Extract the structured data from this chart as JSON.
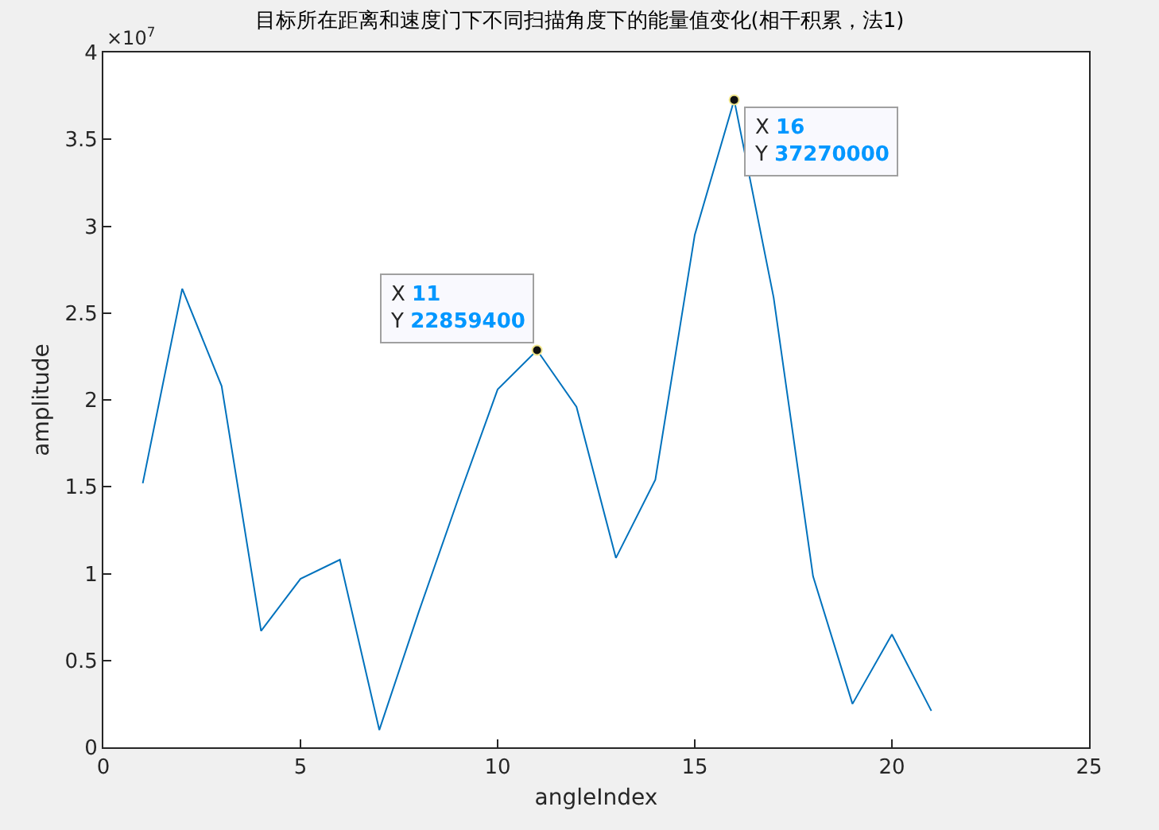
{
  "chart_data": {
    "type": "line",
    "title": "目标所在距离和速度门下不同扫描角度下的能量值变化(相干积累，法1)",
    "xlabel": "angleIndex",
    "ylabel": "amplitude",
    "x": [
      1,
      2,
      3,
      4,
      5,
      6,
      7,
      8,
      9,
      10,
      11,
      12,
      13,
      14,
      15,
      16,
      17,
      18,
      19,
      20,
      21
    ],
    "series": [
      {
        "color": "#0072bd",
        "values": [
          1.52,
          2.64,
          2.08,
          0.67,
          0.97,
          1.08,
          0.1,
          0.78,
          1.43,
          2.06,
          2.28594,
          1.96,
          1.09,
          1.54,
          2.95,
          3.727,
          2.59,
          0.985,
          0.25,
          0.65,
          0.21
        ]
      }
    ],
    "xlim": [
      0,
      25
    ],
    "xticks": [
      0,
      5,
      10,
      15,
      20,
      25
    ],
    "ylim": [
      0,
      4
    ],
    "yticks": [
      0,
      0.5,
      1,
      1.5,
      2,
      2.5,
      3,
      3.5,
      4
    ],
    "annotations": [
      "×10$^{7}$",
      {
        "text": "X 11\nY 22859400",
        "x": 11,
        "y": 2.28594
      },
      {
        "text": "X 16\nY 37270000",
        "x": 16,
        "y": 3.727
      }
    ],
    "grid": false,
    "marker": "none",
    "line_style": "solid"
  }
}
